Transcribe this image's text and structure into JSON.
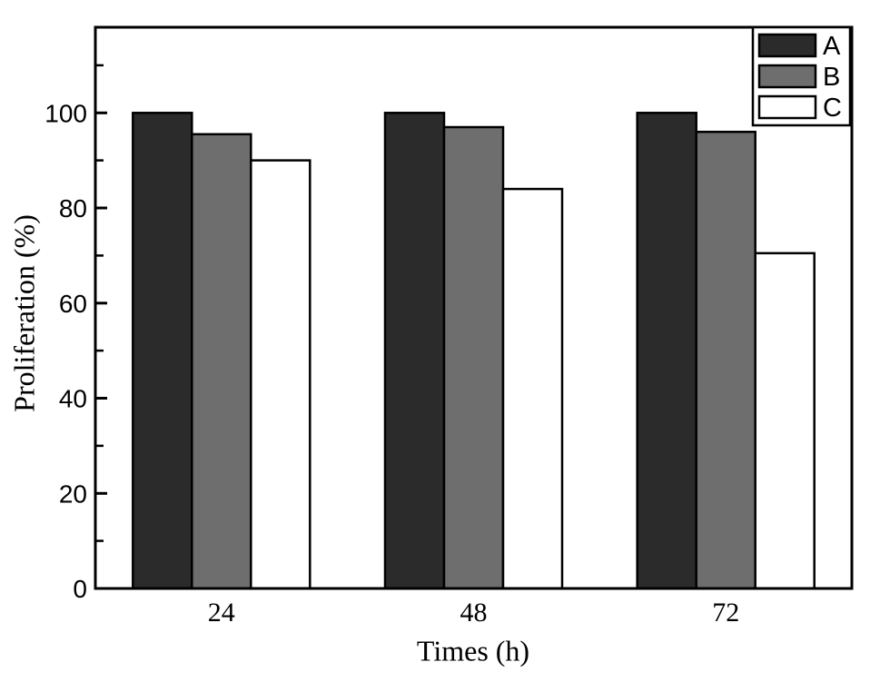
{
  "figure": {
    "background": "#ffffff",
    "axis_color": "#000000"
  },
  "chart_data": {
    "type": "bar",
    "title": "",
    "xlabel": "Times (h)",
    "ylabel": "Proliferation (%)",
    "categories": [
      "24",
      "48",
      "72"
    ],
    "series": [
      {
        "name": "A",
        "color": "#2b2b2b",
        "values": [
          100,
          100,
          100
        ]
      },
      {
        "name": "B",
        "color": "#6e6e6e",
        "values": [
          95.5,
          97,
          96
        ]
      },
      {
        "name": "C",
        "color": "#ffffff",
        "values": [
          90,
          84,
          70.5
        ]
      }
    ],
    "ylim": [
      0,
      118
    ],
    "yticks": [
      0,
      20,
      40,
      60,
      80,
      100
    ],
    "minor_tick_step": 10,
    "grid": false,
    "bar_border_color": "#000000",
    "legend": {
      "position": "top-right",
      "entries": [
        "A",
        "B",
        "C"
      ]
    }
  }
}
